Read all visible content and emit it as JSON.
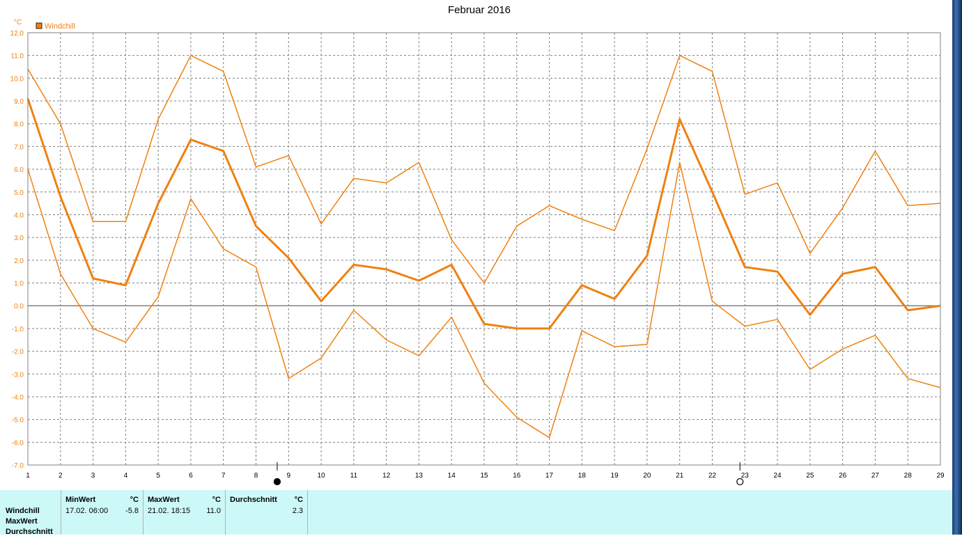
{
  "title": "Februar 2016",
  "unit": "°C",
  "legend": {
    "label": "Windchill",
    "color": "#f08010"
  },
  "colors": {
    "line": "#f08010",
    "grid": "#808080",
    "axis_text": "#f08010",
    "zero_line": "#808080"
  },
  "moon_markers": [
    {
      "icon": "new-moon-icon",
      "x": 8.65
    },
    {
      "icon": "full-moon-icon",
      "x": 22.85
    }
  ],
  "chart_data": {
    "type": "line",
    "title": "Februar 2016",
    "ylabel": "°C",
    "xlim": [
      1,
      29
    ],
    "ylim": [
      -7,
      12
    ],
    "x": [
      1,
      2,
      3,
      4,
      5,
      6,
      7,
      8,
      9,
      10,
      11,
      12,
      13,
      14,
      15,
      16,
      17,
      18,
      19,
      20,
      21,
      22,
      23,
      24,
      25,
      26,
      27,
      28,
      29
    ],
    "x_ticks": [
      "1",
      "2",
      "3",
      "4",
      "5",
      "6",
      "7",
      "8",
      "9",
      "10",
      "11",
      "12",
      "13",
      "14",
      "15",
      "16",
      "17",
      "18",
      "19",
      "20",
      "21",
      "22",
      "23",
      "24",
      "25",
      "26",
      "27",
      "28",
      "29"
    ],
    "y_ticks": [
      "12.0",
      "11.0",
      "10.0",
      "9.0",
      "8.0",
      "7.0",
      "6.0",
      "5.0",
      "4.0",
      "3.0",
      "2.0",
      "1.0",
      "0.0",
      "-1.0",
      "-2.0",
      "-3.0",
      "-4.0",
      "-5.0",
      "-6.0",
      "-7.0"
    ],
    "grid": true,
    "legend_position": "top-left",
    "series": [
      {
        "name": "Windchill",
        "values": [
          10.4,
          8.0,
          3.7,
          3.7,
          8.2,
          11.0,
          10.3,
          6.1,
          6.6,
          3.6,
          5.6,
          5.4,
          6.3,
          2.9,
          1.0,
          3.5,
          4.4,
          3.8,
          3.3,
          6.9,
          11.0,
          10.3,
          4.9,
          5.4,
          2.3,
          4.3,
          6.8,
          4.4,
          4.5
        ],
        "width": 1.5
      },
      {
        "name": "Windchill",
        "values": [
          9.1,
          4.8,
          1.2,
          0.9,
          4.5,
          7.3,
          6.8,
          3.5,
          2.1,
          0.2,
          1.8,
          1.6,
          1.1,
          1.8,
          -0.8,
          -1.0,
          -1.0,
          0.9,
          0.3,
          2.2,
          8.2,
          5.0,
          1.7,
          1.5,
          -0.4,
          1.4,
          1.7,
          -0.2,
          0.0
        ],
        "width": 3
      },
      {
        "name": "Windchill",
        "values": [
          6.0,
          1.4,
          -1.0,
          -1.6,
          0.4,
          4.7,
          2.5,
          1.7,
          -3.2,
          -2.3,
          -0.2,
          -1.5,
          -2.2,
          -0.5,
          -3.4,
          -4.9,
          -5.8,
          -1.1,
          -1.8,
          -1.7,
          6.3,
          0.2,
          -0.9,
          -0.6,
          -2.8,
          -1.9,
          -1.3,
          -3.2,
          -3.6
        ],
        "width": 1.5
      }
    ]
  },
  "summary": {
    "rows": [
      "Windchill",
      "MaxWert",
      "Durchschnitt"
    ],
    "min": {
      "header": "MinWert",
      "unit": "°C",
      "date": "17.02.  06:00",
      "value": "-5.8"
    },
    "max": {
      "header": "MaxWert",
      "unit": "°C",
      "date": "21.02.  18:15",
      "value": "11.0"
    },
    "avg": {
      "header": "Durchschnitt",
      "unit": "°C",
      "value": "2.3"
    }
  }
}
